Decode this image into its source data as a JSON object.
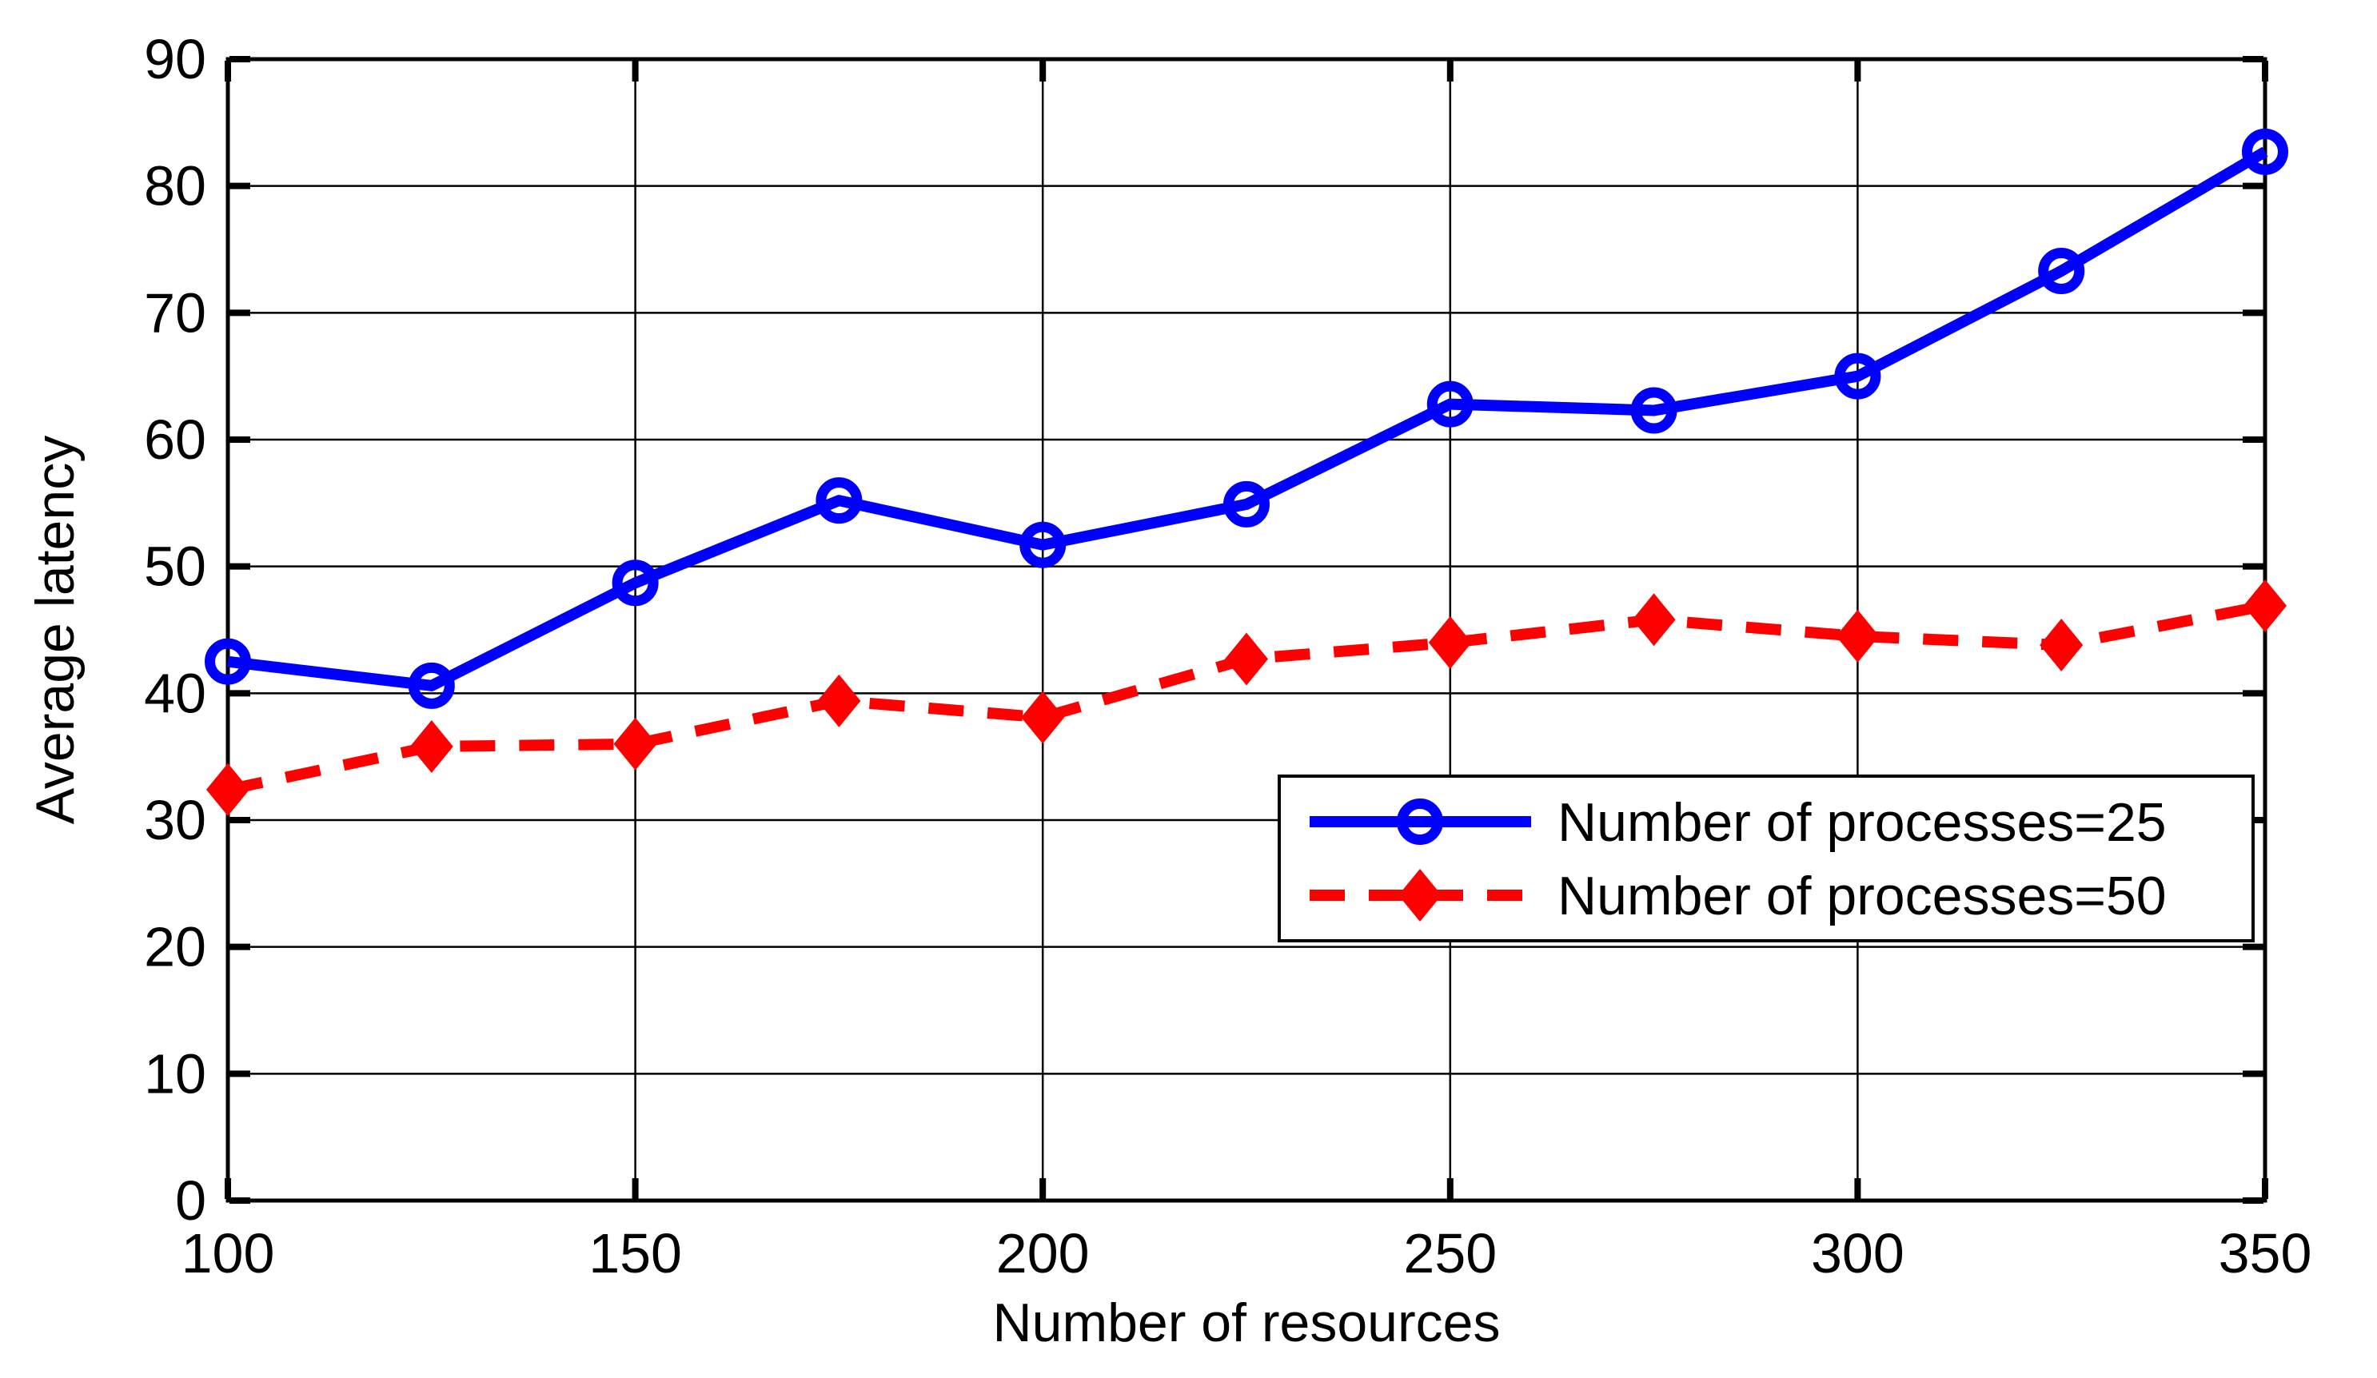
{
  "page": {
    "background": "#FFFFFF",
    "kind": "matlab-style line plot"
  },
  "chart_data": {
    "type": "line",
    "title": "",
    "xlabel": "Number of resources",
    "ylabel": "Average latency",
    "x": [
      100,
      125,
      150,
      175,
      200,
      225,
      250,
      275,
      300,
      325,
      350
    ],
    "x_ticks": [
      100,
      150,
      200,
      250,
      300,
      350
    ],
    "y_ticks": [
      0,
      10,
      20,
      30,
      40,
      50,
      60,
      70,
      80,
      90
    ],
    "xlim": [
      100,
      350
    ],
    "ylim": [
      0,
      90
    ],
    "grid": true,
    "axis_color": "#000000",
    "grid_color": "#000000",
    "legend": {
      "position": "inside-lower-right",
      "border_color": "#000000",
      "background": "#FFFFFF"
    },
    "series": [
      {
        "name": "Number of processes=25",
        "color": "#0000FF",
        "line_style": "solid",
        "marker": "circle",
        "values": [
          42.5,
          40.6,
          48.7,
          55.2,
          51.7,
          54.9,
          62.8,
          62.3,
          65.0,
          73.3,
          82.7
        ]
      },
      {
        "name": "Number of processes=50",
        "color": "#FF0000",
        "line_style": "dashed",
        "marker": "diamond",
        "values": [
          32.4,
          35.8,
          36.0,
          39.4,
          38.1,
          42.7,
          44.0,
          45.8,
          44.5,
          43.8,
          46.9
        ]
      }
    ]
  }
}
